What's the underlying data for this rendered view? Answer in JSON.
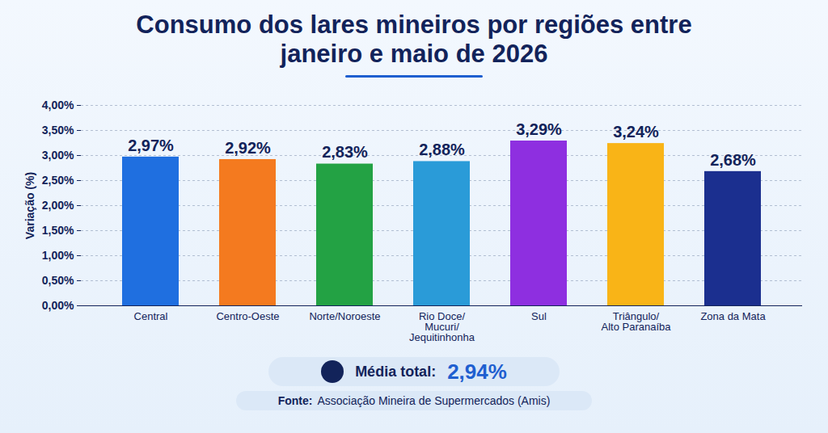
{
  "chart_data": {
    "type": "bar",
    "title": "Consumo dos lares mineiros por regiões entre janeiro e maio de 2026",
    "y_label": "Variação (%)",
    "categories": [
      "Central",
      "Centro-Oeste",
      "Norte/Noroeste",
      "Rio Doce/ Mucuri/ Jequitinhonha",
      "Sul",
      "Triângulo/ Alto Paranaíba",
      "Zona da Mata"
    ],
    "values": [
      2.97,
      2.92,
      2.83,
      2.88,
      3.29,
      3.24,
      2.68
    ],
    "value_labels": [
      "2,97%",
      "2,92%",
      "2,83%",
      "2,88%",
      "3,29%",
      "3,24%",
      "2,68%"
    ],
    "colors": [
      "#1f6fe0",
      "#f47a1f",
      "#23a244",
      "#2a9bd8",
      "#8e2fe0",
      "#f9b417",
      "#1b2f8f"
    ],
    "data_labels": true,
    "grid": true,
    "ylim": [
      0,
      4
    ],
    "yticks": [
      {
        "value": 0,
        "label": "0,00%"
      },
      {
        "value": 0.5,
        "label": "0,50%"
      },
      {
        "value": 1,
        "label": "1,00%"
      },
      {
        "value": 1.5,
        "label": "1,50%"
      },
      {
        "value": 2,
        "label": "2,00%"
      },
      {
        "value": 2.5,
        "label": "2,50%"
      },
      {
        "value": 3,
        "label": "3,00%"
      },
      {
        "value": 3.5,
        "label": "3,50%"
      },
      {
        "value": 4,
        "label": "4,00%"
      }
    ],
    "average": {
      "label": "Média total:",
      "value": 2.94,
      "value_label": "2,94%"
    },
    "source": {
      "label": "Fonte:",
      "text": "Associação Mineira de Supermercados (Amis)"
    }
  }
}
